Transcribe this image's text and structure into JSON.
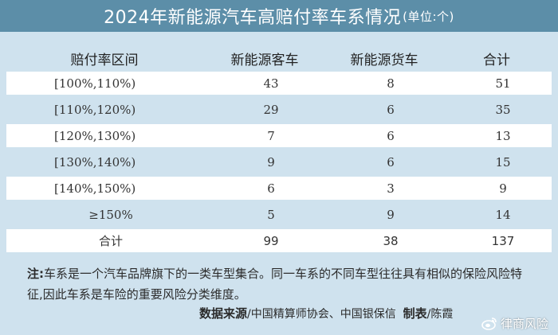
{
  "title": {
    "main": "2024年新能源汽车高赔付率车系情况",
    "unit": "(单位:个)"
  },
  "table": {
    "headers": [
      "赔付率区间",
      "新能源客车",
      "新能源货车",
      "合计"
    ],
    "rows": [
      {
        "range": "[100%,110%)",
        "passenger": "43",
        "truck": "8",
        "total": "51"
      },
      {
        "range": "[110%,120%)",
        "passenger": "29",
        "truck": "6",
        "total": "35"
      },
      {
        "range": "[120%,130%)",
        "passenger": "7",
        "truck": "6",
        "total": "13"
      },
      {
        "range": "[130%,140%)",
        "passenger": "9",
        "truck": "6",
        "total": "15"
      },
      {
        "range": "[140%,150%)",
        "passenger": "6",
        "truck": "3",
        "total": "9"
      },
      {
        "range": "≥150%",
        "passenger": "5",
        "truck": "9",
        "total": "14"
      },
      {
        "range": "合计",
        "passenger": "99",
        "truck": "38",
        "total": "137"
      }
    ]
  },
  "note": {
    "label": "注:",
    "text": "车系是一个汽车品牌旗下的一类车型集合。同一车系的不同车型往往具有相似的保险风险特征,因此车系是车险的重要风险分类维度。"
  },
  "source": {
    "label": "数据来源",
    "value": "/中国精算师协会、中国银保信",
    "maker_label": "制表",
    "maker_value": "/陈霞"
  },
  "watermark": {
    "text": "律商风险",
    "icon": "weibo-icon"
  },
  "colors": {
    "title_bar": "#5c8ea8",
    "panel": "#cfe2ee",
    "row_white": "#ffffff"
  }
}
